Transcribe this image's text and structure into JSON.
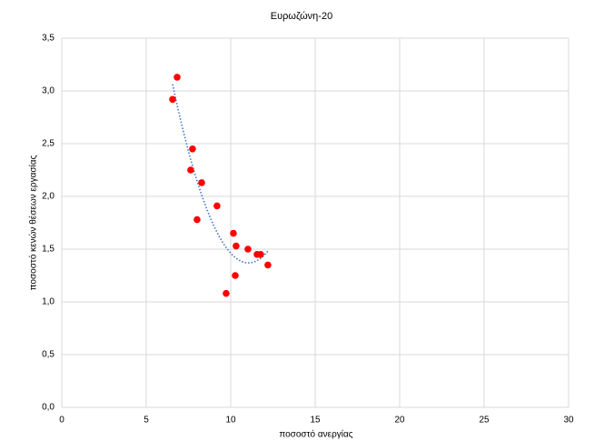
{
  "chart_data": {
    "type": "scatter",
    "title": "Ευρωζώνη-20",
    "x_label": "ποσοστό ανεργίας",
    "y_label": "ποσοστό κενών θέσεων εργασίας",
    "x": [
      6.56,
      6.83,
      7.74,
      7.63,
      8.28,
      8.01,
      9.19,
      10.16,
      10.32,
      11.02,
      11.56,
      11.77,
      12.2,
      10.27,
      9.73
    ],
    "values": [
      2.92,
      3.13,
      2.45,
      2.25,
      2.13,
      1.78,
      1.91,
      1.65,
      1.53,
      1.5,
      1.45,
      1.45,
      1.35,
      1.25,
      1.08
    ],
    "color": "#ff0000",
    "trendline": {
      "type": "polynomial",
      "order": 2,
      "color": "#4472c4"
    },
    "xlim": [
      0,
      30
    ],
    "xticks": [
      0,
      5,
      10,
      15,
      20,
      25,
      30
    ],
    "ylim": [
      0,
      3.5
    ],
    "yticks": [
      {
        "value": 0,
        "label": "0,0"
      },
      {
        "value": 0.5,
        "label": "0,5"
      },
      {
        "value": 1,
        "label": "1,0"
      },
      {
        "value": 1.5,
        "label": "1,5"
      },
      {
        "value": 2,
        "label": "2,0"
      },
      {
        "value": 2.5,
        "label": "2,5"
      },
      {
        "value": 3,
        "label": "3,0"
      },
      {
        "value": 3.5,
        "label": "3,5"
      }
    ],
    "grid": true
  }
}
